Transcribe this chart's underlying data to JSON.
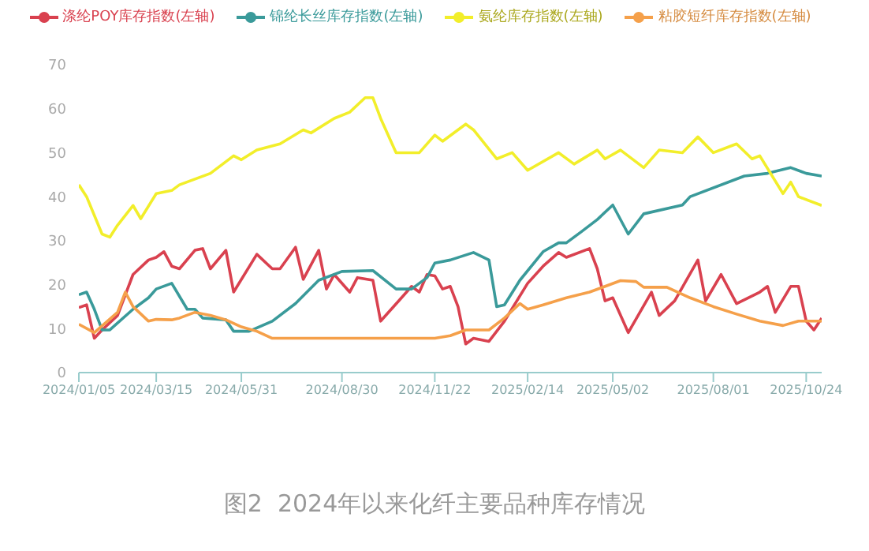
{
  "chart_data": {
    "type": "line",
    "title": "图2  2024年以来化纤主要品种库存情况",
    "xlim": [
      "2024-01-05",
      "2025-11-07"
    ],
    "xticks": [
      {
        "value": "2024-01-05",
        "label": "2024/01/05"
      },
      {
        "value": "2024-03-15",
        "label": "2024/03/15"
      },
      {
        "value": "2024-05-31",
        "label": "2024/05/31"
      },
      {
        "value": "2024-08-30",
        "label": "2024/08/30"
      },
      {
        "value": "2024-11-22",
        "label": "2024/11/22"
      },
      {
        "value": "2025-02-14",
        "label": "2025/02/14"
      },
      {
        "value": "2025-05-02",
        "label": "2025/05/02"
      },
      {
        "value": "2025-08-01",
        "label": "2025/08/01"
      },
      {
        "value": "2025-10-24",
        "label": "2025/10/24"
      }
    ],
    "ylim": [
      0,
      70
    ],
    "yticks": [
      0,
      10,
      20,
      30,
      40,
      50,
      60,
      70
    ],
    "grid": false,
    "legend": "top",
    "series": [
      {
        "name": "涤纶POY库存指数(左轴)",
        "color": "#d9414f",
        "x": [
          "2024-01-05",
          "2024-01-12",
          "2024-01-19",
          "2024-01-26",
          "2024-02-09",
          "2024-02-23",
          "2024-03-08",
          "2024-03-15",
          "2024-03-22",
          "2024-03-29",
          "2024-04-05",
          "2024-04-19",
          "2024-04-26",
          "2024-05-03",
          "2024-05-17",
          "2024-05-24",
          "2024-06-14",
          "2024-06-28",
          "2024-07-05",
          "2024-07-19",
          "2024-07-26",
          "2024-08-09",
          "2024-08-16",
          "2024-08-23",
          "2024-09-06",
          "2024-09-13",
          "2024-09-27",
          "2024-10-04",
          "2024-11-01",
          "2024-11-08",
          "2024-11-15",
          "2024-11-22",
          "2024-11-29",
          "2024-12-06",
          "2024-12-13",
          "2024-12-20",
          "2024-12-27",
          "2025-01-10",
          "2025-01-24",
          "2025-02-14",
          "2025-02-28",
          "2025-03-14",
          "2025-03-21",
          "2025-04-11",
          "2025-04-18",
          "2025-04-25",
          "2025-05-02",
          "2025-05-16",
          "2025-06-06",
          "2025-06-13",
          "2025-06-27",
          "2025-07-18",
          "2025-07-25",
          "2025-08-08",
          "2025-08-22",
          "2025-09-12",
          "2025-09-19",
          "2025-09-26",
          "2025-10-10",
          "2025-10-17",
          "2025-10-24",
          "2025-10-31",
          "2025-11-07"
        ],
        "values": [
          14.8,
          15.4,
          7.8,
          9.7,
          13,
          22.3,
          25.6,
          26.2,
          27.5,
          24.2,
          23.6,
          27.8,
          28.2,
          23.6,
          27.8,
          18.3,
          26.9,
          23.6,
          23.6,
          28.5,
          21.2,
          27.8,
          19,
          22.3,
          18.3,
          21.6,
          21,
          11.7,
          19.6,
          18.3,
          22.3,
          22,
          19,
          19.6,
          15,
          6.5,
          7.8,
          7.1,
          11.7,
          20.3,
          24.2,
          27.3,
          26.2,
          28.2,
          23.6,
          16.3,
          17,
          9.1,
          18.3,
          13,
          16.3,
          25.6,
          16.3,
          22.3,
          15.7,
          18.3,
          19.6,
          13.7,
          19.6,
          19.6,
          11.7,
          9.7,
          12.4
        ]
      },
      {
        "name": "锦纶长丝库存指数(左轴)",
        "color": "#3a9a9a",
        "x": [
          "2024-01-05",
          "2024-01-12",
          "2024-01-19",
          "2024-01-26",
          "2024-02-02",
          "2024-02-23",
          "2024-03-08",
          "2024-03-15",
          "2024-03-29",
          "2024-04-12",
          "2024-04-19",
          "2024-04-26",
          "2024-05-17",
          "2024-05-24",
          "2024-06-07",
          "2024-06-28",
          "2024-07-19",
          "2024-08-09",
          "2024-08-30",
          "2024-09-27",
          "2024-10-18",
          "2024-11-01",
          "2024-11-15",
          "2024-11-22",
          "2024-12-06",
          "2024-12-27",
          "2025-01-10",
          "2025-01-17",
          "2025-01-24",
          "2025-02-07",
          "2025-02-28",
          "2025-03-14",
          "2025-03-21",
          "2025-04-04",
          "2025-04-18",
          "2025-05-02",
          "2025-05-16",
          "2025-05-30",
          "2025-07-04",
          "2025-07-11",
          "2025-08-29",
          "2025-09-19",
          "2025-10-10",
          "2025-10-24",
          "2025-11-07"
        ],
        "values": [
          17.7,
          18.3,
          14.4,
          9.7,
          9.7,
          14.4,
          17,
          19,
          20.3,
          14.4,
          14.4,
          12.4,
          12,
          9.4,
          9.4,
          11.7,
          15.7,
          21,
          23,
          23.2,
          19,
          19,
          21.6,
          24.9,
          25.6,
          27.3,
          25.6,
          15,
          15.4,
          21,
          27.5,
          29.5,
          29.5,
          32.1,
          34.8,
          38.1,
          31.5,
          36.1,
          38.1,
          40,
          44.7,
          45.3,
          46.6,
          45.3,
          44.7
        ]
      },
      {
        "name": "氨纶库存指数(左轴)",
        "color": "#f2ee2a",
        "x": [
          "2024-01-05",
          "2024-01-12",
          "2024-01-26",
          "2024-02-02",
          "2024-02-09",
          "2024-02-23",
          "2024-03-01",
          "2024-03-15",
          "2024-03-29",
          "2024-04-05",
          "2024-05-03",
          "2024-05-24",
          "2024-05-31",
          "2024-06-14",
          "2024-07-05",
          "2024-07-26",
          "2024-08-02",
          "2024-08-23",
          "2024-09-06",
          "2024-09-20",
          "2024-09-27",
          "2024-10-04",
          "2024-10-18",
          "2024-11-08",
          "2024-11-22",
          "2024-11-29",
          "2024-12-20",
          "2024-12-27",
          "2025-01-17",
          "2025-01-31",
          "2025-02-14",
          "2025-03-14",
          "2025-03-28",
          "2025-04-18",
          "2025-04-25",
          "2025-05-09",
          "2025-05-30",
          "2025-06-13",
          "2025-07-04",
          "2025-07-18",
          "2025-08-01",
          "2025-08-22",
          "2025-09-05",
          "2025-09-12",
          "2025-10-03",
          "2025-10-10",
          "2025-10-17",
          "2025-11-07"
        ],
        "values": [
          42.7,
          40,
          31.5,
          30.8,
          33.5,
          38,
          35,
          40.7,
          41.4,
          42.7,
          45.3,
          49.3,
          48.4,
          50.6,
          52,
          55.2,
          54.5,
          57.8,
          59.2,
          62.5,
          62.5,
          57.8,
          50,
          50,
          54,
          52.6,
          56.5,
          55.2,
          48.6,
          50,
          46,
          50,
          47.4,
          50.6,
          48.6,
          50.6,
          46.6,
          50.6,
          50,
          53.6,
          50,
          52,
          48.6,
          49.3,
          40.7,
          43.3,
          40,
          38
        ]
      },
      {
        "name": "粘胶短纤库存指数(左轴)",
        "color": "#f5a04a",
        "x": [
          "2024-01-05",
          "2024-01-19",
          "2024-02-09",
          "2024-02-16",
          "2024-02-23",
          "2024-03-08",
          "2024-03-15",
          "2024-03-29",
          "2024-04-05",
          "2024-04-19",
          "2024-05-03",
          "2024-05-17",
          "2024-05-31",
          "2024-06-14",
          "2024-06-28",
          "2024-11-15",
          "2024-11-22",
          "2024-12-06",
          "2024-12-20",
          "2025-01-10",
          "2025-01-24",
          "2025-02-07",
          "2025-02-14",
          "2025-02-28",
          "2025-03-21",
          "2025-04-11",
          "2025-05-09",
          "2025-05-23",
          "2025-05-30",
          "2025-06-20",
          "2025-07-11",
          "2025-08-01",
          "2025-08-22",
          "2025-09-12",
          "2025-10-03",
          "2025-10-17",
          "2025-11-07"
        ],
        "values": [
          11,
          9.1,
          13.7,
          18.3,
          15,
          11.7,
          12.1,
          12,
          12.4,
          13.7,
          13,
          12,
          10.4,
          9.4,
          7.8,
          7.8,
          7.8,
          8.4,
          9.7,
          9.7,
          12.4,
          15.7,
          14.4,
          15.4,
          17,
          18.3,
          20.9,
          20.7,
          19.4,
          19.4,
          17,
          15,
          13.3,
          11.7,
          10.7,
          11.7,
          11.7
        ]
      }
    ]
  }
}
